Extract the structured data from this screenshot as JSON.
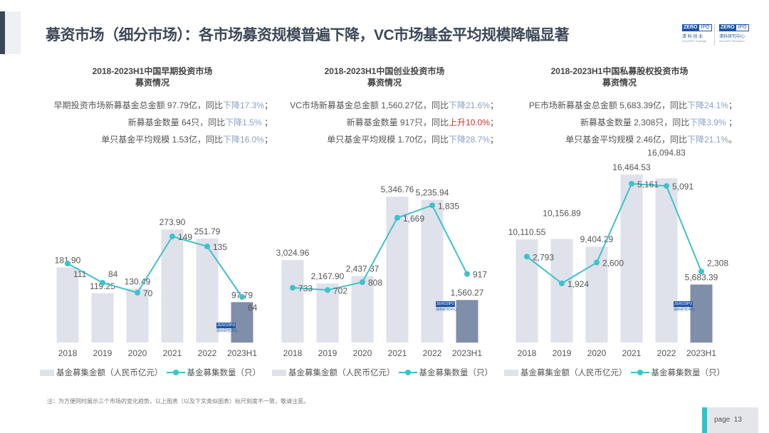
{
  "header": {
    "title": "募资市场（细分市场）：各市场募资规模普遍下降，VC市场基金平均规模降幅显著",
    "logos": [
      {
        "brand": "ZERO",
        "suffix": "IPO",
        "cn": "清 科 创 业",
        "en": "Zero2IPO Holdings"
      },
      {
        "brand": "ZERO",
        "suffix": "IPO",
        "cn": "清科研究中心",
        "en": "Zero2IPO Research"
      }
    ]
  },
  "colors": {
    "bar": "#dfe2ea",
    "bar_latest": "#7f8ea9",
    "line": "#3fc1cc",
    "down": "#8ea2c4",
    "up": "#c8302a"
  },
  "panels": [
    {
      "title_line1": "2018-2023H1中国早期投资市场",
      "title_line2": "募资情况",
      "stats": [
        {
          "text": "早期投资市场新募基金总金额 97.79亿，同比",
          "change": "下降17.3%",
          "dir": "down",
          "suffix": "；"
        },
        {
          "text": "新募基金数量 64只，同比",
          "change": "下降1.5%",
          "dir": "down",
          "suffix": " ；"
        },
        {
          "text": "单只基金平均规模 1.53亿，同比",
          "change": "下降16.0%",
          "dir": "down",
          "suffix": "；"
        }
      ]
    },
    {
      "title_line1": "2018-2023H1中国创业投资市场",
      "title_line2": "募资情况",
      "stats": [
        {
          "text": "VC市场新募基金总金额 1,560.27亿，同比",
          "change": "下降21.6%",
          "dir": "down",
          "suffix": "；"
        },
        {
          "text": "新募基金数量 917只，同比",
          "change": "上升10.0%",
          "dir": "up",
          "suffix": "；"
        },
        {
          "text": "单只基金平均规模 1.70亿，同比",
          "change": "下降28.7%",
          "dir": "down",
          "suffix": "；"
        }
      ]
    },
    {
      "title_line1": "2018-2023H1中国私募股权投资市场",
      "title_line2": "募资情况",
      "stats": [
        {
          "text": "PE市场新募基金总金额 5,683.39亿，同比",
          "change": "下降24.1%",
          "dir": "down",
          "suffix": "；"
        },
        {
          "text": "新募基金数量 2,308只，同比",
          "change": "下降3.9%",
          "dir": "down",
          "suffix": " ；"
        },
        {
          "text": "单只基金平均规模 2.46亿，同比",
          "change": "下降21.1%",
          "dir": "down",
          "suffix": "。"
        }
      ]
    }
  ],
  "chart_data": [
    {
      "type": "bar+line",
      "categories": [
        "2018",
        "2019",
        "2020",
        "2021",
        "2022",
        "2023H1"
      ],
      "series": [
        {
          "name": "基金募集金额（人民币亿元）",
          "type": "bar",
          "values": [
            181.9,
            119.25,
            130.49,
            273.9,
            251.79,
            97.79
          ],
          "labels": [
            "181.90",
            "119.25",
            "130.49",
            "273.90",
            "251.79",
            "97.79"
          ]
        },
        {
          "name": "基金募集数量（只）",
          "type": "line",
          "values": [
            111,
            84,
            70,
            149,
            135,
            64
          ],
          "labels": [
            "111",
            "84",
            "70",
            "149",
            "135",
            "64"
          ]
        }
      ],
      "legend": "bottom",
      "grid": false,
      "axes_visible": false
    },
    {
      "type": "bar+line",
      "categories": [
        "2018",
        "2019",
        "2020",
        "2021",
        "2022",
        "2023H1"
      ],
      "series": [
        {
          "name": "基金募集金额（人民币亿元）",
          "type": "bar",
          "values": [
            3024.96,
            2167.9,
            2437.37,
            5346.76,
            5235.94,
            1560.27
          ],
          "labels": [
            "3,024.96",
            "2,167.90",
            "2,437.37",
            "5,346.76",
            "5,235.94",
            "1,560.27"
          ]
        },
        {
          "name": "基金募集数量（只）",
          "type": "line",
          "values": [
            733,
            702,
            808,
            1669,
            1835,
            917
          ],
          "labels": [
            "733",
            "702",
            "808",
            "1,669",
            "1,835",
            "917"
          ]
        }
      ],
      "legend": "bottom",
      "grid": false,
      "axes_visible": false
    },
    {
      "type": "bar+line",
      "categories": [
        "2018",
        "2019",
        "2020",
        "2021",
        "2022",
        "2023H1"
      ],
      "series": [
        {
          "name": "基金募集金额（人民币亿元）",
          "type": "bar",
          "values": [
            10110.55,
            10156.89,
            9404.29,
            16464.53,
            16094.83,
            5683.39
          ],
          "labels": [
            "10,110.55",
            "10,156.89",
            "9,404.29",
            "16,464.53",
            "16,094.83",
            "5,683.39"
          ]
        },
        {
          "name": "基金募集数量（只）",
          "type": "line",
          "values": [
            2793,
            1924,
            2600,
            5161,
            5091,
            2308
          ],
          "labels": [
            "2,793",
            "1,924",
            "2,600",
            "5,161",
            "5,091",
            "2,308"
          ]
        }
      ],
      "legend": "bottom",
      "grid": false,
      "axes_visible": false
    }
  ],
  "footer": {
    "note": "注：为方便同时展示三个市场的变化趋势，以上图表（以及下文类似图表）标尺刻度不一致，敬请注意。",
    "page_label": "page  13"
  }
}
